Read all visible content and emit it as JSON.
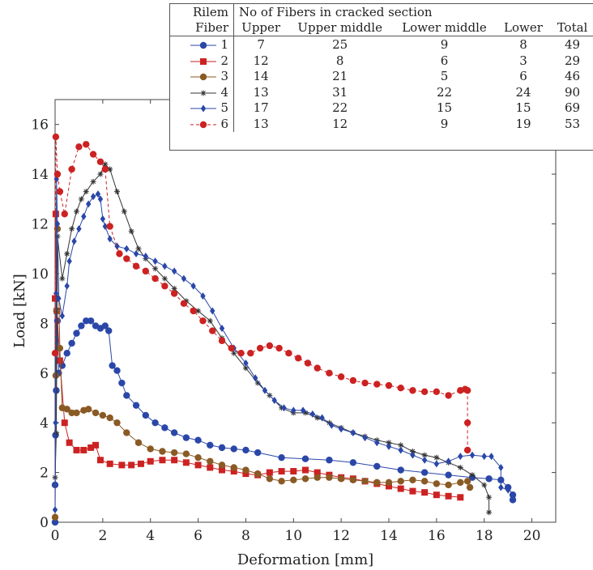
{
  "chart_data": {
    "type": "line",
    "title": "",
    "xlabel": "Deformation [mm]",
    "ylabel": "Load [kN]",
    "xlim": [
      0,
      21
    ],
    "ylim": [
      0,
      17
    ],
    "x_ticks": [
      0,
      2,
      4,
      6,
      8,
      10,
      12,
      14,
      16,
      18,
      20
    ],
    "y_ticks": [
      0,
      2,
      4,
      6,
      8,
      10,
      12,
      14,
      16
    ],
    "grid": false,
    "legend_position": "top-right",
    "table": {
      "header_left": [
        "Rilem",
        "Fiber"
      ],
      "header_group": "No of Fibers in cracked section",
      "columns": [
        "Upper",
        "Upper middle",
        "Lower middle",
        "Lower",
        "Total"
      ],
      "rows": [
        {
          "fiber": "1",
          "values": [
            "7",
            "25",
            "9",
            "8",
            "49"
          ]
        },
        {
          "fiber": "2",
          "values": [
            "12",
            "8",
            "6",
            "3",
            "29"
          ]
        },
        {
          "fiber": "3",
          "values": [
            "14",
            "21",
            "5",
            "6",
            "46"
          ]
        },
        {
          "fiber": "4",
          "values": [
            "13",
            "31",
            "22",
            "24",
            "90"
          ]
        },
        {
          "fiber": "5",
          "values": [
            "17",
            "22",
            "15",
            "15",
            "69"
          ]
        },
        {
          "fiber": "6",
          "values": [
            "13",
            "12",
            "9",
            "19",
            "53"
          ]
        }
      ]
    },
    "series": [
      {
        "name": "1",
        "color": "#2a47a8",
        "marker": "circle",
        "dash": false,
        "points": [
          [
            0,
            0
          ],
          [
            0,
            1.5
          ],
          [
            0.02,
            3.5
          ],
          [
            0.05,
            5.3
          ],
          [
            0.1,
            8.1
          ],
          [
            0.15,
            6.0
          ],
          [
            0.3,
            6.3
          ],
          [
            0.5,
            6.8
          ],
          [
            0.7,
            7.2
          ],
          [
            0.9,
            7.6
          ],
          [
            1.1,
            7.9
          ],
          [
            1.3,
            8.1
          ],
          [
            1.5,
            8.1
          ],
          [
            1.7,
            7.9
          ],
          [
            1.9,
            7.8
          ],
          [
            2.1,
            7.9
          ],
          [
            2.25,
            7.7
          ],
          [
            2.4,
            6.3
          ],
          [
            2.6,
            6.1
          ],
          [
            2.8,
            5.6
          ],
          [
            3.0,
            5.1
          ],
          [
            3.4,
            4.7
          ],
          [
            3.8,
            4.3
          ],
          [
            4.2,
            4.0
          ],
          [
            4.6,
            3.8
          ],
          [
            5.0,
            3.6
          ],
          [
            5.5,
            3.4
          ],
          [
            6.0,
            3.3
          ],
          [
            6.5,
            3.1
          ],
          [
            7.0,
            3.0
          ],
          [
            7.5,
            2.95
          ],
          [
            8.0,
            2.9
          ],
          [
            8.5,
            2.8
          ],
          [
            9.5,
            2.6
          ],
          [
            10.5,
            2.55
          ],
          [
            11.5,
            2.5
          ],
          [
            12.5,
            2.4
          ],
          [
            13.5,
            2.25
          ],
          [
            14.5,
            2.1
          ],
          [
            15.5,
            2.0
          ],
          [
            16.5,
            1.9
          ],
          [
            17.5,
            1.8
          ],
          [
            18.2,
            1.75
          ],
          [
            18.7,
            1.7
          ],
          [
            19.0,
            1.4
          ],
          [
            19.2,
            1.1
          ],
          [
            19.2,
            0.9
          ]
        ]
      },
      {
        "name": "2",
        "color": "#cc2222",
        "marker": "square",
        "dash": false,
        "points": [
          [
            0,
            9.0
          ],
          [
            0.03,
            12.4
          ],
          [
            0.08,
            8.5
          ],
          [
            0.2,
            6.5
          ],
          [
            0.4,
            4.0
          ],
          [
            0.6,
            3.2
          ],
          [
            0.9,
            2.9
          ],
          [
            1.2,
            2.9
          ],
          [
            1.5,
            3.0
          ],
          [
            1.7,
            3.1
          ],
          [
            1.9,
            2.5
          ],
          [
            2.3,
            2.35
          ],
          [
            2.8,
            2.3
          ],
          [
            3.2,
            2.3
          ],
          [
            3.6,
            2.35
          ],
          [
            4.0,
            2.45
          ],
          [
            4.5,
            2.5
          ],
          [
            5.0,
            2.5
          ],
          [
            5.5,
            2.4
          ],
          [
            6.0,
            2.3
          ],
          [
            6.5,
            2.2
          ],
          [
            7.0,
            2.1
          ],
          [
            7.5,
            2.05
          ],
          [
            8.0,
            1.95
          ],
          [
            8.5,
            1.9
          ],
          [
            9.0,
            2.0
          ],
          [
            9.5,
            2.05
          ],
          [
            10.0,
            2.05
          ],
          [
            10.5,
            2.1
          ],
          [
            11.0,
            2.0
          ],
          [
            11.5,
            1.9
          ],
          [
            12.0,
            1.8
          ],
          [
            12.5,
            1.75
          ],
          [
            13.0,
            1.65
          ],
          [
            13.5,
            1.55
          ],
          [
            14.0,
            1.45
          ],
          [
            14.5,
            1.35
          ],
          [
            15.0,
            1.25
          ],
          [
            15.5,
            1.2
          ],
          [
            16.0,
            1.1
          ],
          [
            16.5,
            1.05
          ],
          [
            17.0,
            1.0
          ]
        ]
      },
      {
        "name": "3",
        "color": "#8a5a25",
        "marker": "circle",
        "dash": false,
        "points": [
          [
            0,
            0.2
          ],
          [
            0.03,
            5.9
          ],
          [
            0.06,
            8.5
          ],
          [
            0.1,
            11.8
          ],
          [
            0.2,
            7.0
          ],
          [
            0.3,
            4.6
          ],
          [
            0.5,
            4.55
          ],
          [
            0.7,
            4.4
          ],
          [
            0.9,
            4.4
          ],
          [
            1.2,
            4.5
          ],
          [
            1.4,
            4.55
          ],
          [
            1.7,
            4.4
          ],
          [
            2.0,
            4.3
          ],
          [
            2.3,
            4.2
          ],
          [
            2.6,
            4.0
          ],
          [
            3.0,
            3.6
          ],
          [
            3.5,
            3.2
          ],
          [
            4.0,
            2.95
          ],
          [
            4.5,
            2.85
          ],
          [
            5.0,
            2.8
          ],
          [
            5.5,
            2.75
          ],
          [
            6.0,
            2.6
          ],
          [
            6.5,
            2.45
          ],
          [
            7.0,
            2.3
          ],
          [
            7.5,
            2.2
          ],
          [
            8.0,
            2.1
          ],
          [
            8.5,
            1.95
          ],
          [
            9.0,
            1.75
          ],
          [
            9.5,
            1.65
          ],
          [
            10.0,
            1.7
          ],
          [
            10.5,
            1.75
          ],
          [
            11.0,
            1.8
          ],
          [
            11.5,
            1.8
          ],
          [
            12.0,
            1.75
          ],
          [
            12.5,
            1.7
          ],
          [
            13.0,
            1.65
          ],
          [
            13.5,
            1.6
          ],
          [
            14.0,
            1.6
          ],
          [
            14.5,
            1.65
          ],
          [
            15.0,
            1.7
          ],
          [
            15.5,
            1.65
          ],
          [
            16.0,
            1.55
          ],
          [
            16.5,
            1.5
          ],
          [
            17.0,
            1.6
          ],
          [
            17.3,
            1.65
          ],
          [
            17.4,
            1.4
          ]
        ]
      },
      {
        "name": "4",
        "color": "#333333",
        "marker": "star",
        "dash": false,
        "points": [
          [
            0,
            1.8
          ],
          [
            0.05,
            3.6
          ],
          [
            0.1,
            11.5
          ],
          [
            0.3,
            9.8
          ],
          [
            0.5,
            10.8
          ],
          [
            0.7,
            11.8
          ],
          [
            0.9,
            12.5
          ],
          [
            1.1,
            13.0
          ],
          [
            1.3,
            13.3
          ],
          [
            1.6,
            13.7
          ],
          [
            1.9,
            14.0
          ],
          [
            2.1,
            14.4
          ],
          [
            2.3,
            14.2
          ],
          [
            2.6,
            13.3
          ],
          [
            2.9,
            12.5
          ],
          [
            3.2,
            11.7
          ],
          [
            3.5,
            11.0
          ],
          [
            3.8,
            10.6
          ],
          [
            4.2,
            10.2
          ],
          [
            4.6,
            9.8
          ],
          [
            5.0,
            9.4
          ],
          [
            5.5,
            8.9
          ],
          [
            6.0,
            8.5
          ],
          [
            6.5,
            8.1
          ],
          [
            7.0,
            7.4
          ],
          [
            7.5,
            6.8
          ],
          [
            8.0,
            6.2
          ],
          [
            8.5,
            5.6
          ],
          [
            9.0,
            5.1
          ],
          [
            9.5,
            4.6
          ],
          [
            10.0,
            4.4
          ],
          [
            10.5,
            4.4
          ],
          [
            11.0,
            4.2
          ],
          [
            11.5,
            4.0
          ],
          [
            12.0,
            3.8
          ],
          [
            12.5,
            3.6
          ],
          [
            13.0,
            3.45
          ],
          [
            13.5,
            3.3
          ],
          [
            14.0,
            3.2
          ],
          [
            14.5,
            3.1
          ],
          [
            15.0,
            2.85
          ],
          [
            15.5,
            2.7
          ],
          [
            16.0,
            2.6
          ],
          [
            16.5,
            2.4
          ],
          [
            17.0,
            2.2
          ],
          [
            17.5,
            1.9
          ],
          [
            18.0,
            1.5
          ],
          [
            18.2,
            1.0
          ],
          [
            18.2,
            0.4
          ]
        ]
      },
      {
        "name": "5",
        "color": "#2a47a8",
        "marker": "diamond",
        "dash": false,
        "points": [
          [
            0,
            0.5
          ],
          [
            0.02,
            4.0
          ],
          [
            0.04,
            9.2
          ],
          [
            0.06,
            13.8
          ],
          [
            0.1,
            12.0
          ],
          [
            0.15,
            9.0
          ],
          [
            0.3,
            8.3
          ],
          [
            0.5,
            9.5
          ],
          [
            0.6,
            10.5
          ],
          [
            0.8,
            11.3
          ],
          [
            1.0,
            11.8
          ],
          [
            1.2,
            12.3
          ],
          [
            1.4,
            12.8
          ],
          [
            1.6,
            13.1
          ],
          [
            1.8,
            13.2
          ],
          [
            1.9,
            13.0
          ],
          [
            2.0,
            12.2
          ],
          [
            2.1,
            11.9
          ],
          [
            2.3,
            11.4
          ],
          [
            2.6,
            11.1
          ],
          [
            3.0,
            11.0
          ],
          [
            3.4,
            10.8
          ],
          [
            3.8,
            10.7
          ],
          [
            4.2,
            10.5
          ],
          [
            4.6,
            10.3
          ],
          [
            5.0,
            10.1
          ],
          [
            5.4,
            9.8
          ],
          [
            5.8,
            9.5
          ],
          [
            6.2,
            9.1
          ],
          [
            6.6,
            8.5
          ],
          [
            7.0,
            7.8
          ],
          [
            7.5,
            7.0
          ],
          [
            8.0,
            6.4
          ],
          [
            8.4,
            5.8
          ],
          [
            8.8,
            5.3
          ],
          [
            9.2,
            4.9
          ],
          [
            9.6,
            4.6
          ],
          [
            10.0,
            4.5
          ],
          [
            10.4,
            4.5
          ],
          [
            10.8,
            4.35
          ],
          [
            11.2,
            4.2
          ],
          [
            11.6,
            3.9
          ],
          [
            12.0,
            3.75
          ],
          [
            12.5,
            3.6
          ],
          [
            13.0,
            3.4
          ],
          [
            13.5,
            3.2
          ],
          [
            14.0,
            3.05
          ],
          [
            14.5,
            2.9
          ],
          [
            15.0,
            2.7
          ],
          [
            15.5,
            2.5
          ],
          [
            16.0,
            2.35
          ],
          [
            16.5,
            2.45
          ],
          [
            17.0,
            2.65
          ],
          [
            17.5,
            2.7
          ],
          [
            18.0,
            2.65
          ],
          [
            18.3,
            2.65
          ],
          [
            18.7,
            2.2
          ],
          [
            18.7,
            1.4
          ],
          [
            19.0,
            1.3
          ]
        ]
      },
      {
        "name": "6",
        "color": "#cc2222",
        "marker": "circle",
        "dash": true,
        "points": [
          [
            0,
            6.8
          ],
          [
            0.03,
            15.5
          ],
          [
            0.1,
            14.0
          ],
          [
            0.2,
            13.3
          ],
          [
            0.4,
            12.4
          ],
          [
            0.7,
            14.2
          ],
          [
            1.0,
            15.1
          ],
          [
            1.3,
            15.2
          ],
          [
            1.6,
            14.8
          ],
          [
            1.9,
            14.5
          ],
          [
            2.1,
            14.2
          ],
          [
            2.3,
            11.9
          ],
          [
            2.7,
            10.8
          ],
          [
            3.0,
            10.6
          ],
          [
            3.4,
            10.3
          ],
          [
            3.8,
            10.1
          ],
          [
            4.2,
            9.8
          ],
          [
            4.6,
            9.5
          ],
          [
            5.0,
            9.2
          ],
          [
            5.4,
            8.8
          ],
          [
            5.8,
            8.5
          ],
          [
            6.2,
            8.1
          ],
          [
            6.6,
            7.7
          ],
          [
            7.0,
            7.3
          ],
          [
            7.4,
            7.0
          ],
          [
            7.8,
            6.8
          ],
          [
            8.2,
            6.8
          ],
          [
            8.6,
            7.0
          ],
          [
            9.0,
            7.1
          ],
          [
            9.4,
            7.0
          ],
          [
            9.8,
            6.8
          ],
          [
            10.2,
            6.6
          ],
          [
            10.6,
            6.4
          ],
          [
            11.0,
            6.2
          ],
          [
            11.5,
            6.0
          ],
          [
            12.0,
            5.85
          ],
          [
            12.5,
            5.7
          ],
          [
            13.0,
            5.6
          ],
          [
            13.5,
            5.55
          ],
          [
            14.0,
            5.5
          ],
          [
            14.5,
            5.4
          ],
          [
            15.0,
            5.3
          ],
          [
            15.5,
            5.25
          ],
          [
            16.0,
            5.25
          ],
          [
            16.5,
            5.1
          ],
          [
            17.0,
            5.3
          ],
          [
            17.2,
            5.35
          ],
          [
            17.3,
            5.3
          ],
          [
            17.3,
            4.0
          ],
          [
            17.3,
            2.9
          ]
        ]
      }
    ]
  }
}
